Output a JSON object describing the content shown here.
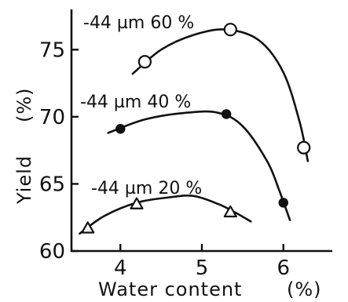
{
  "chart_data": {
    "type": "scatter",
    "title": "",
    "xlabel": "Water content",
    "xunit": "(%)",
    "ylabel": "Yield",
    "yunit": "(%)",
    "xlim": [
      3.4,
      6.6
    ],
    "ylim": [
      60,
      78
    ],
    "x_ticks": [
      4,
      5,
      6
    ],
    "y_ticks": [
      60,
      65,
      70,
      75
    ],
    "grid": false,
    "series": [
      {
        "name": "-44 µm 60 %",
        "marker": "open-circle",
        "x": [
          4.3,
          5.35,
          6.25
        ],
        "y": [
          74.1,
          76.5,
          67.7
        ],
        "curve_x": [
          4.15,
          4.5,
          4.9,
          5.3,
          5.7,
          6.0,
          6.2,
          6.3
        ],
        "curve_y": [
          73.2,
          75.0,
          76.1,
          76.5,
          75.7,
          73.3,
          69.6,
          66.7
        ]
      },
      {
        "name": "-44 µm 40 %",
        "marker": "filled-circle",
        "x": [
          4.0,
          5.3,
          6.0
        ],
        "y": [
          69.1,
          70.2,
          63.6
        ],
        "curve_x": [
          3.85,
          4.3,
          4.8,
          5.2,
          5.5,
          5.8,
          5.95,
          6.08
        ],
        "curve_y": [
          68.8,
          69.8,
          70.3,
          70.3,
          69.3,
          66.7,
          64.5,
          62.3
        ]
      },
      {
        "name": "-44 µm 20 %",
        "marker": "open-triangle",
        "x": [
          3.6,
          4.2,
          5.35
        ],
        "y": [
          61.7,
          63.5,
          62.9
        ],
        "curve_x": [
          3.5,
          3.8,
          4.2,
          4.6,
          4.9,
          5.2,
          5.4,
          5.6
        ],
        "curve_y": [
          61.3,
          62.6,
          63.6,
          64.0,
          64.1,
          63.5,
          62.9,
          62.2
        ]
      }
    ]
  }
}
